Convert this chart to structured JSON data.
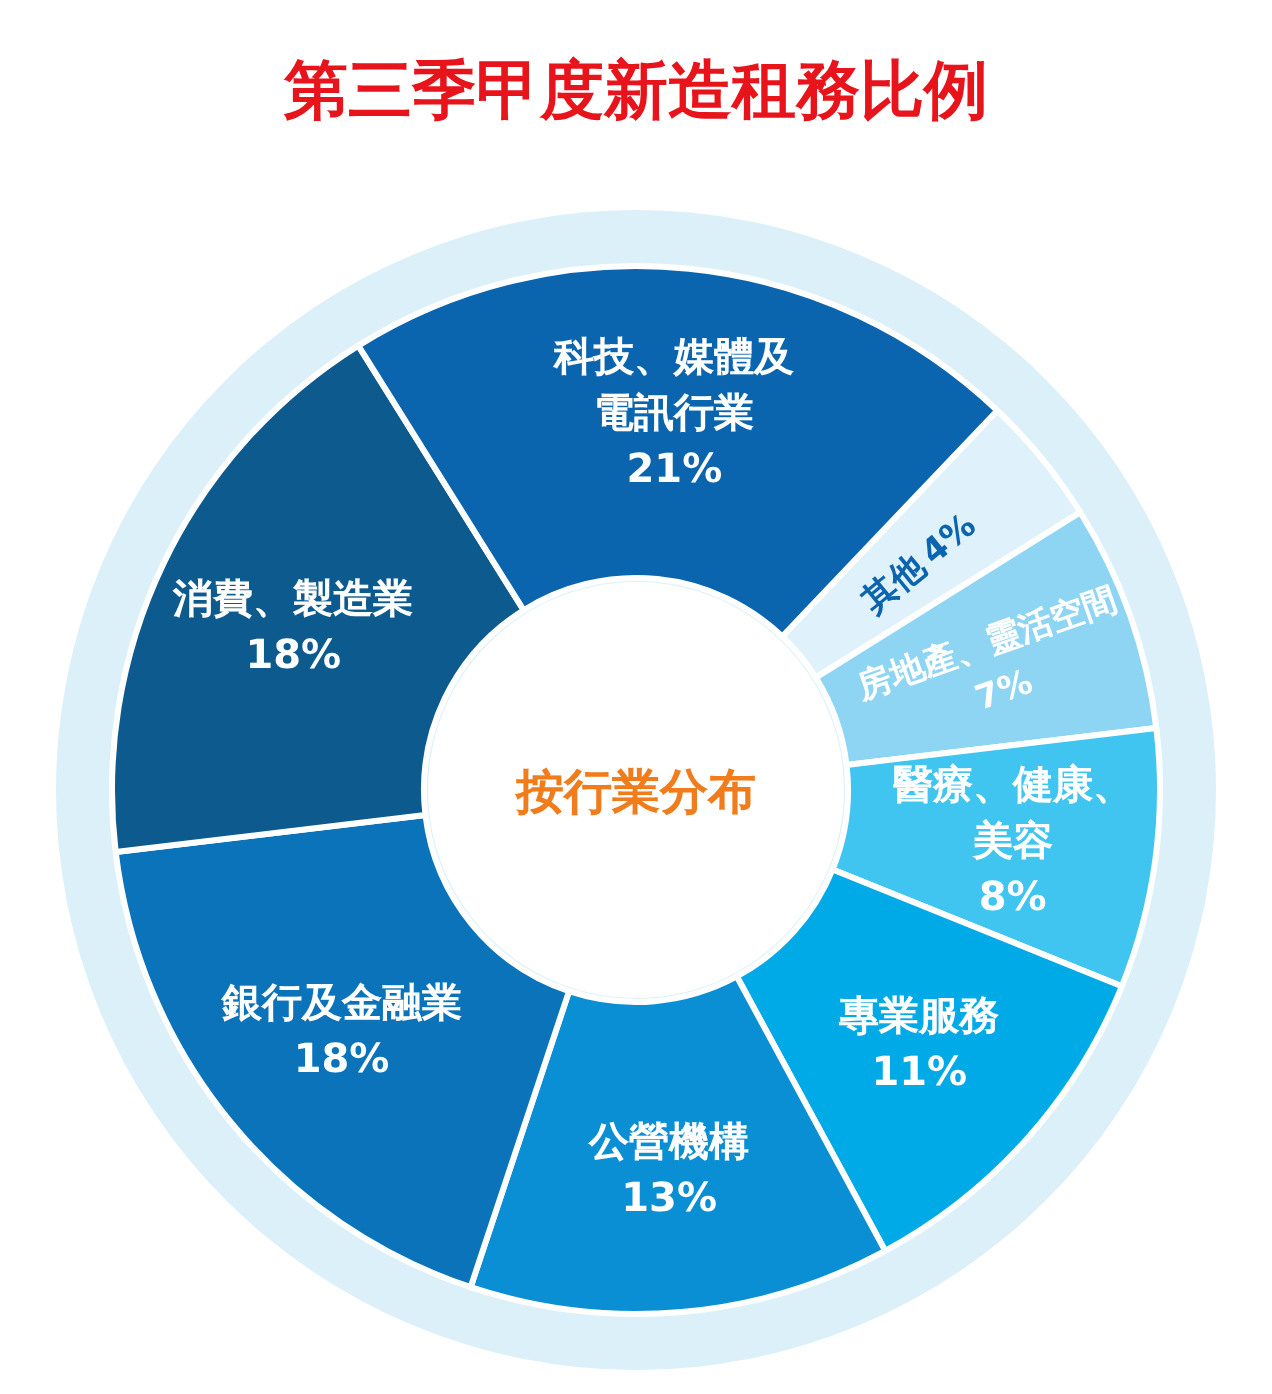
{
  "chart_data": {
    "type": "donut",
    "title": "第三季甲度新造租務比例",
    "categories": [
      "其他",
      "房地產、靈活空間",
      "醫療、健康、美容",
      "專業服務",
      "公營機構",
      "銀行及金融業",
      "消費、製造業",
      "科技、媒體及電訊行業"
    ],
    "values": [
      4,
      7,
      8,
      11,
      13,
      18,
      18,
      21
    ],
    "colors": [
      "#dff1fa",
      "#8ed4f3",
      "#40c4f0",
      "#00aae6",
      "#0b8fd4",
      "#0a73ba",
      "#0d5a8e",
      "#0b64ae"
    ],
    "value_labels": [
      "4%",
      "7%",
      "8%",
      "11%",
      "13%",
      "18%",
      "18%",
      "21%"
    ],
    "annotations": [
      "按行業分布"
    ]
  }
}
